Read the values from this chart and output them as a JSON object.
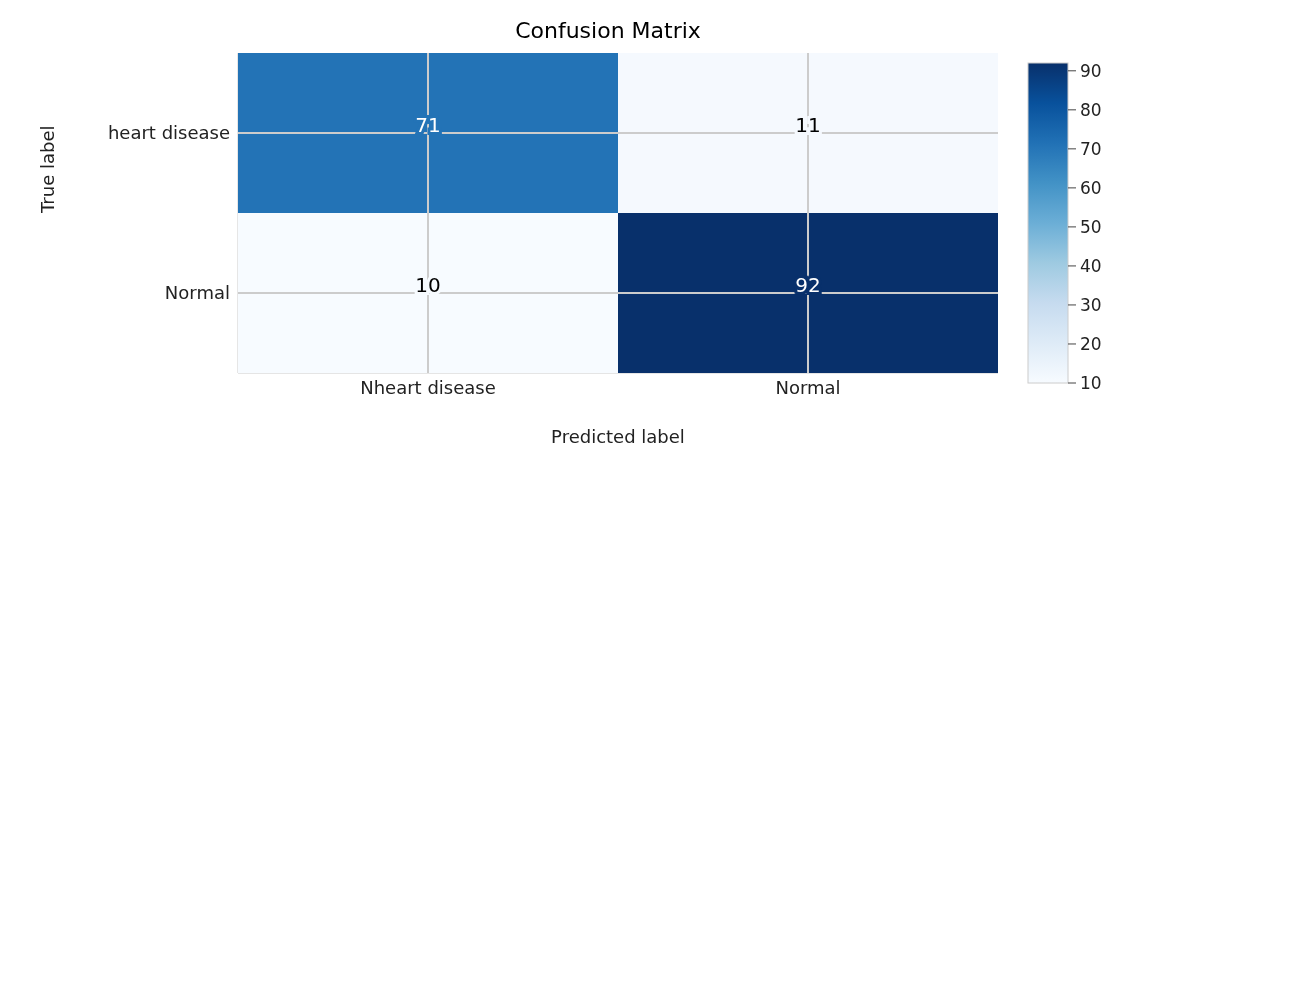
{
  "chart_data": {
    "type": "heatmap",
    "title": "Confusion Matrix",
    "xlabel": "Predicted label",
    "ylabel": "True label",
    "categories": [
      "Nheart disease",
      "Normal"
    ],
    "y_categories": [
      "heart disease",
      "Normal"
    ],
    "cells": [
      [
        71,
        11
      ],
      [
        10,
        92
      ]
    ],
    "clim": [
      10,
      92
    ],
    "cticks": [
      10,
      20,
      30,
      40,
      50,
      60,
      70,
      80,
      90
    ],
    "grid": true,
    "data_labels": true
  }
}
